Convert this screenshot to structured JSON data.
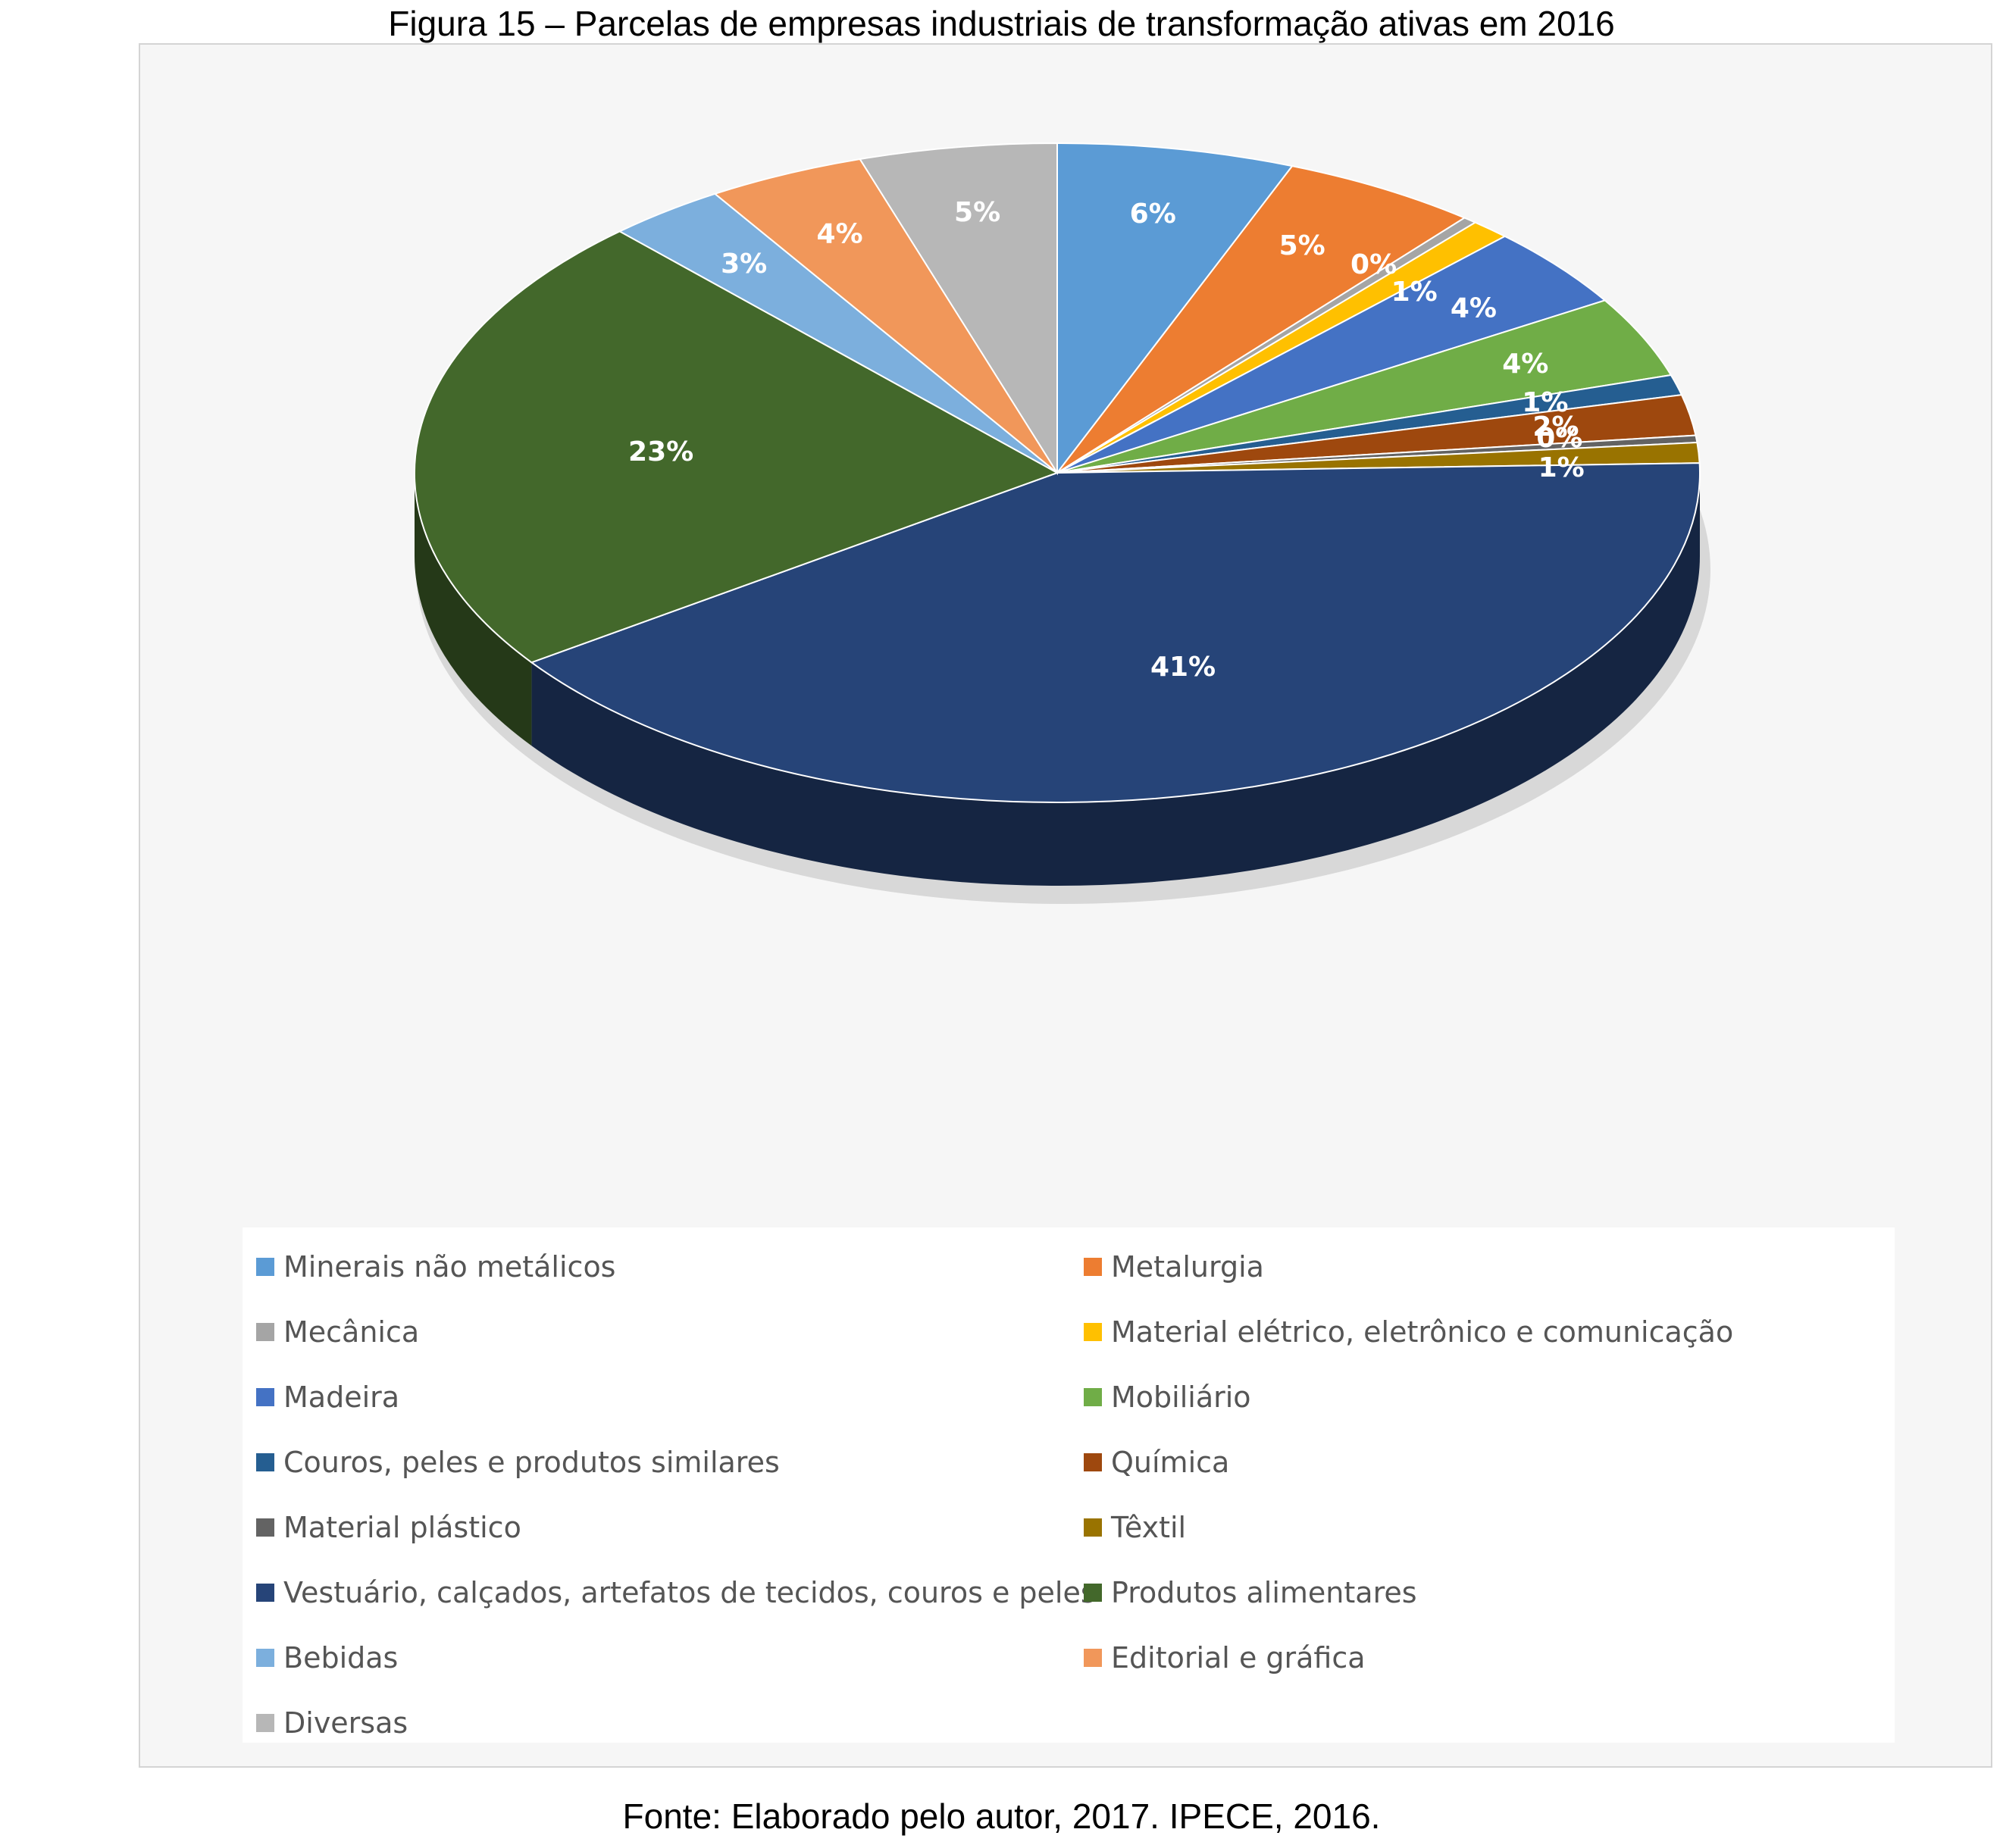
{
  "figure_title": "Figura 15 – Parcelas de empresas industriais de transformação ativas em 2016",
  "source": "Fonte: Elaborado pelo autor, 2017. IPECE, 2016.",
  "chart_data": {
    "type": "pie",
    "title": "",
    "legend_position": "bottom",
    "slices": [
      {
        "name": "Minerais não metálicos",
        "value": 6,
        "label": "6%",
        "color": "#5b9bd5"
      },
      {
        "name": "Metalurgia",
        "value": 5,
        "label": "5%",
        "color": "#ed7d31"
      },
      {
        "name": "Mecânica",
        "value": 0,
        "label": "0%",
        "color": "#a5a5a5"
      },
      {
        "name": "Material elétrico, eletrônico e comunicação",
        "value": 1,
        "label": "1%",
        "color": "#ffc000"
      },
      {
        "name": "Madeira",
        "value": 4,
        "label": "4%",
        "color": "#4472c4"
      },
      {
        "name": "Mobiliário",
        "value": 4,
        "label": "4%",
        "color": "#70ad47"
      },
      {
        "name": "Couros, peles e produtos similares",
        "value": 1,
        "label": "1%",
        "color": "#255e91"
      },
      {
        "name": "Química",
        "value": 2,
        "label": "2%",
        "color": "#9e480e"
      },
      {
        "name": "Material plástico",
        "value": 0,
        "label": "0%",
        "color": "#636363"
      },
      {
        "name": "Têxtil",
        "value": 1,
        "label": "1%",
        "color": "#997300"
      },
      {
        "name": "Vestuário, calçados, artefatos de tecidos, couros e peles",
        "value": 41,
        "label": "41%",
        "color": "#264478"
      },
      {
        "name": "Produtos alimentares",
        "value": 23,
        "label": "23%",
        "color": "#43682b"
      },
      {
        "name": "Bebidas",
        "value": 3,
        "label": "3%",
        "color": "#7cafdd"
      },
      {
        "name": "Editorial e gráfica",
        "value": 4,
        "label": "4%",
        "color": "#f1975a"
      },
      {
        "name": "Diversas",
        "value": 5,
        "label": "5%",
        "color": "#b7b7b7"
      }
    ]
  }
}
